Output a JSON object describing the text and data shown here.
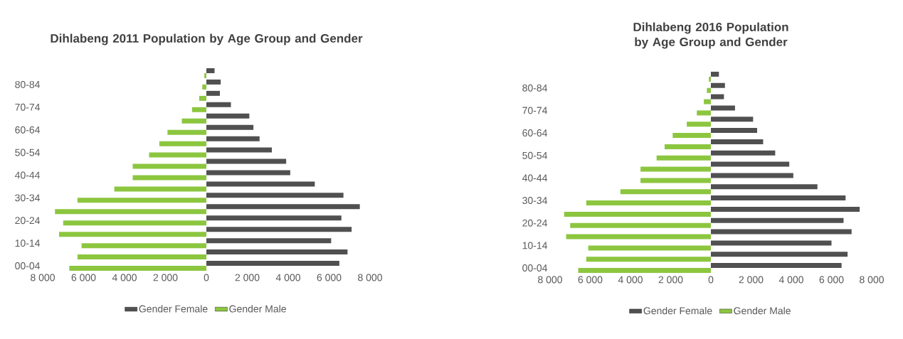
{
  "chart_data": [
    {
      "type": "bar",
      "orientation": "horizontal",
      "title": "Dihlabeng 2011 Population by  Age Group and Gender",
      "categories": [
        null,
        "80-84",
        null,
        "70-74",
        null,
        "60-64",
        null,
        "50-54",
        null,
        "40-44",
        null,
        "30-34",
        null,
        "20-24",
        null,
        "10-14",
        null,
        "00-04"
      ],
      "series": [
        {
          "name": "Gender Female",
          "color": "#505050",
          "values": [
            400,
            700,
            660,
            1200,
            2100,
            2300,
            2600,
            3200,
            3900,
            4100,
            5300,
            6700,
            7500,
            6600,
            7100,
            6100,
            6900,
            6500
          ]
        },
        {
          "name": "Gender Male",
          "color": "#8cc63f",
          "values": [
            -100,
            -200,
            -350,
            -700,
            -1200,
            -1900,
            -2300,
            -2800,
            -3600,
            -3600,
            -4500,
            -6300,
            -7400,
            -7000,
            -7200,
            -6100,
            -6300,
            -6700
          ]
        }
      ],
      "xlim": [
        -8000,
        8000
      ],
      "xticks": [
        {
          "value": -8000,
          "label": "8 000"
        },
        {
          "value": -6000,
          "label": "6 000"
        },
        {
          "value": -4000,
          "label": "4 000"
        },
        {
          "value": -2000,
          "label": "2 000"
        },
        0,
        {
          "value": 2000,
          "label": "2 000"
        },
        {
          "value": 4000,
          "label": "4 000"
        },
        {
          "value": 6000,
          "label": "6 000"
        },
        {
          "value": 8000,
          "label": "8 000"
        }
      ],
      "legend": "bottom"
    },
    {
      "type": "bar",
      "orientation": "horizontal",
      "title": "Dihlabeng 2016 Population by  Age Group and Gender",
      "categories": [
        null,
        "80-84",
        null,
        "70-74",
        null,
        "60-64",
        null,
        "50-54",
        null,
        "40-44",
        null,
        "30-34",
        null,
        "20-24",
        null,
        "10-14",
        null,
        "00-04"
      ],
      "series": [
        {
          "name": "Gender Female",
          "color": "#505050",
          "values": [
            400,
            700,
            650,
            1200,
            2100,
            2300,
            2600,
            3200,
            3900,
            4100,
            5300,
            6700,
            7400,
            6600,
            7000,
            6000,
            6800,
            6500
          ]
        },
        {
          "name": "Gender Male",
          "color": "#8cc63f",
          "values": [
            -100,
            -200,
            -350,
            -700,
            -1200,
            -1900,
            -2300,
            -2700,
            -3500,
            -3500,
            -4500,
            -6200,
            -7300,
            -7000,
            -7200,
            -6100,
            -6200,
            -6600
          ]
        }
      ],
      "xlim": [
        -8000,
        8000
      ],
      "xticks": [
        {
          "value": -8000,
          "label": "8 000"
        },
        {
          "value": -6000,
          "label": "6 000"
        },
        {
          "value": -4000,
          "label": "4 000"
        },
        {
          "value": -2000,
          "label": "2 000"
        },
        0,
        {
          "value": 2000,
          "label": "2 000"
        },
        {
          "value": 4000,
          "label": "4 000"
        },
        {
          "value": 6000,
          "label": "6 000"
        },
        {
          "value": 8000,
          "label": "8 000"
        }
      ],
      "legend": "bottom"
    }
  ]
}
